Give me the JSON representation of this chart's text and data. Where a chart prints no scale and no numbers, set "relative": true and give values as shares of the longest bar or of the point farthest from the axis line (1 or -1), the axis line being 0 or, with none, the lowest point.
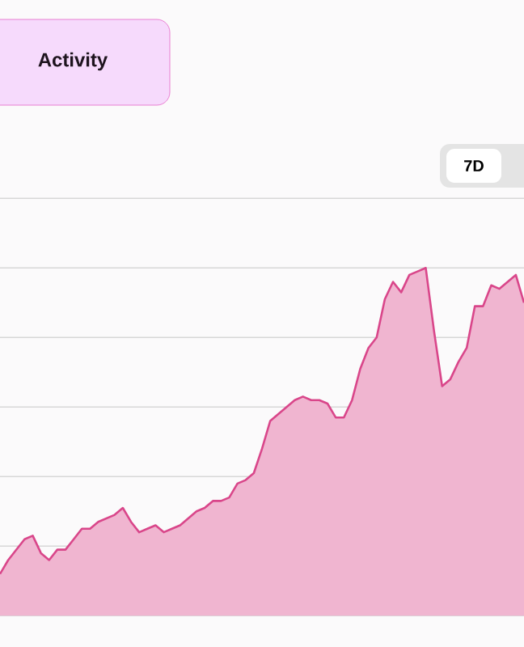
{
  "chart_data": {
    "type": "area",
    "title": "Activity",
    "annotations": [
      "7D"
    ],
    "relative": true,
    "grid": "y",
    "categories": [
      null,
      null,
      null,
      null,
      null,
      null,
      null,
      null,
      null,
      null,
      null,
      null,
      null,
      null,
      null,
      null,
      null,
      null,
      null,
      null,
      null,
      null,
      null,
      null,
      null,
      null,
      null,
      null,
      null,
      null,
      null,
      null,
      null,
      null,
      null,
      null,
      null,
      null,
      null,
      null,
      null,
      null,
      null,
      null,
      null,
      null,
      null,
      null,
      null,
      null,
      null,
      null,
      null,
      null,
      null,
      null,
      null,
      null,
      null,
      null,
      null,
      null,
      null,
      null,
      null
    ],
    "series": [
      {
        "color": "#d9468a",
        "values": [
          0.12,
          0.16,
          0.19,
          0.22,
          0.23,
          0.18,
          0.16,
          0.19,
          0.19,
          0.22,
          0.25,
          0.25,
          0.27,
          0.28,
          0.29,
          0.31,
          0.27,
          0.24,
          0.25,
          0.26,
          0.24,
          0.25,
          0.26,
          0.28,
          0.3,
          0.31,
          0.33,
          0.33,
          0.34,
          0.38,
          0.39,
          0.41,
          0.48,
          0.56,
          0.58,
          0.6,
          0.62,
          0.63,
          0.62,
          0.62,
          0.61,
          0.57,
          0.57,
          0.62,
          0.71,
          0.77,
          0.8,
          0.91,
          0.96,
          0.93,
          0.98,
          0.99,
          1.0,
          0.82,
          0.66,
          0.68,
          0.73,
          0.77,
          0.89,
          0.89,
          0.95,
          0.94,
          0.96,
          0.98,
          0.9
        ]
      }
    ]
  }
}
